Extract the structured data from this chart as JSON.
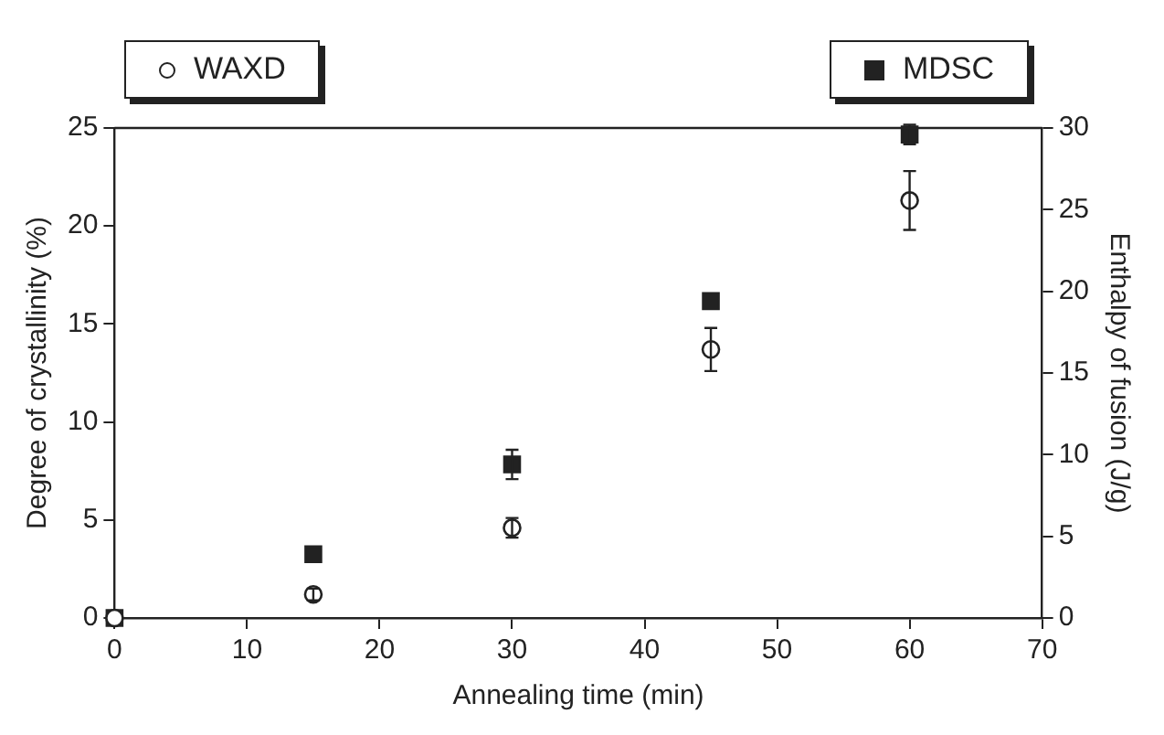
{
  "chart_data": {
    "type": "scatter",
    "xlabel": "Annealing time (min)",
    "ylabel": "Degree of crystallinity (%)",
    "y2label": "Enthalpy of fusion (J/g)",
    "x": [
      0,
      15,
      30,
      45,
      60
    ],
    "series": [
      {
        "name": "WAXD",
        "color": "#222222",
        "marker": "circle",
        "values": [
          0,
          1.2,
          4.6,
          13.7,
          21.3
        ],
        "errors": [
          null,
          0.3,
          0.5,
          1.1,
          1.5
        ]
      },
      {
        "name": "MDSC",
        "color": "#222222",
        "marker": "square",
        "axis": "y2",
        "values": [
          0,
          3.9,
          9.4,
          19.4,
          29.6
        ],
        "errors": [
          null,
          null,
          0.9,
          null,
          0.6
        ]
      }
    ],
    "xlim": [
      0,
      70
    ],
    "xticks": [
      0,
      10,
      20,
      30,
      40,
      50,
      60,
      70
    ],
    "ylim": [
      0,
      25
    ],
    "yticks": [
      0,
      5,
      10,
      15,
      20,
      25
    ],
    "y2lim": [
      0,
      30
    ],
    "y2ticks": [
      0,
      5,
      10,
      15,
      20,
      25,
      30
    ],
    "grid": false,
    "legend": "top"
  }
}
